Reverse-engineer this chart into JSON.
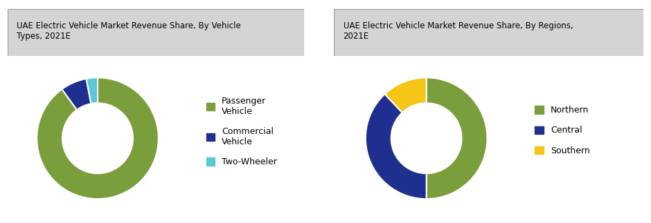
{
  "chart1": {
    "title": "UAE Electric Vehicle Market Revenue Share, By Vehicle\nTypes, 2021E",
    "values": [
      90,
      7,
      3
    ],
    "colors": [
      "#7a9e3b",
      "#1f2f8f",
      "#5bc8d8"
    ],
    "legend_labels": [
      "Passenger\nVehicle",
      "Commercial\nVehicle",
      "Two-Wheeler"
    ]
  },
  "chart2": {
    "title": "UAE Electric Vehicle Market Revenue Share, By Regions,\n2021E",
    "values": [
      50,
      38,
      12
    ],
    "colors": [
      "#7a9e3b",
      "#1f2f8f",
      "#f5c518"
    ],
    "legend_labels": [
      "Northern",
      "Central",
      "Southern"
    ]
  },
  "bg_color": "#ffffff",
  "box_bg": "#d4d4d4",
  "title_fontsize": 8.5,
  "legend_fontsize": 9,
  "wedge_linewidth": 1.5,
  "donut_width": 0.42
}
